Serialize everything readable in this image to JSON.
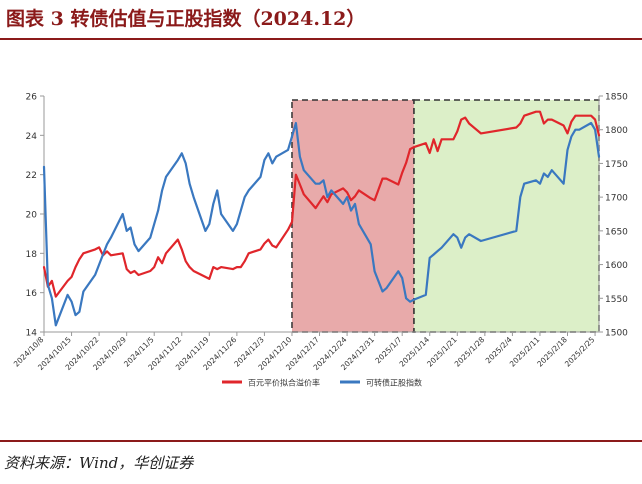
{
  "header": {
    "title": "图表 3    转债估值与正股指数（2024.12）"
  },
  "footer": {
    "source": "资料来源：Wind，华创证券"
  },
  "colors": {
    "title": "#8b1a1a",
    "premium_line": "#e0262b",
    "index_line": "#3a78c0",
    "shade_red": "#e8aaaa",
    "shade_green": "#dcefc8"
  },
  "chart_data": {
    "type": "line",
    "grid": false,
    "legend_position": "bottom",
    "y_left": {
      "ylim": [
        14,
        26
      ],
      "ticks": [
        14,
        16,
        18,
        20,
        22,
        24,
        26
      ]
    },
    "y_right": {
      "ylim": [
        1500,
        1850
      ],
      "ticks": [
        1500,
        1550,
        1600,
        1650,
        1700,
        1750,
        1800,
        1850
      ]
    },
    "x_ticks": [
      "2024/10/8",
      "2024/10/15",
      "2024/10/22",
      "2024/10/29",
      "2024/11/5",
      "2024/11/12",
      "2024/11/19",
      "2024/11/26",
      "2024/12/3",
      "2024/12/10",
      "2024/12/17",
      "2024/12/24",
      "2024/12/31",
      "2025/1/7",
      "2025/1/14",
      "2025/1/21",
      "2025/1/28",
      "2025/2/4",
      "2025/2/11",
      "2025/2/18",
      "2025/2/25"
    ],
    "shaded_regions": [
      {
        "from": "2024/12/10",
        "to": "2025/1/10",
        "color": "red"
      },
      {
        "from": "2025/1/10",
        "to": "2025/2/26",
        "color": "green"
      }
    ],
    "series": [
      {
        "name": "百元平价拟合溢价率",
        "axis": "left",
        "color": "#e0262b",
        "points": [
          [
            "2024/10/8",
            17.3
          ],
          [
            "2024/10/9",
            16.3
          ],
          [
            "2024/10/10",
            16.6
          ],
          [
            "2024/10/11",
            15.8
          ],
          [
            "2024/10/14",
            16.6
          ],
          [
            "2024/10/15",
            16.8
          ],
          [
            "2024/10/16",
            17.3
          ],
          [
            "2024/10/17",
            17.7
          ],
          [
            "2024/10/18",
            18.0
          ],
          [
            "2024/10/21",
            18.2
          ],
          [
            "2024/10/22",
            18.3
          ],
          [
            "2024/10/23",
            17.9
          ],
          [
            "2024/10/24",
            18.1
          ],
          [
            "2024/10/25",
            17.9
          ],
          [
            "2024/10/28",
            18.0
          ],
          [
            "2024/10/29",
            17.2
          ],
          [
            "2024/10/30",
            17.0
          ],
          [
            "2024/10/31",
            17.1
          ],
          [
            "2024/11/1",
            16.9
          ],
          [
            "2024/11/4",
            17.1
          ],
          [
            "2024/11/5",
            17.3
          ],
          [
            "2024/11/6",
            17.8
          ],
          [
            "2024/11/7",
            17.5
          ],
          [
            "2024/11/8",
            18.0
          ],
          [
            "2024/11/11",
            18.7
          ],
          [
            "2024/11/12",
            18.2
          ],
          [
            "2024/11/13",
            17.6
          ],
          [
            "2024/11/14",
            17.3
          ],
          [
            "2024/11/15",
            17.1
          ],
          [
            "2024/11/18",
            16.8
          ],
          [
            "2024/11/19",
            16.7
          ],
          [
            "2024/11/20",
            17.3
          ],
          [
            "2024/11/21",
            17.2
          ],
          [
            "2024/11/22",
            17.3
          ],
          [
            "2024/11/25",
            17.2
          ],
          [
            "2024/11/26",
            17.3
          ],
          [
            "2024/11/27",
            17.3
          ],
          [
            "2024/11/28",
            17.6
          ],
          [
            "2024/11/29",
            18.0
          ],
          [
            "2024/12/2",
            18.2
          ],
          [
            "2024/12/3",
            18.5
          ],
          [
            "2024/12/4",
            18.7
          ],
          [
            "2024/12/5",
            18.4
          ],
          [
            "2024/12/6",
            18.3
          ],
          [
            "2024/12/9",
            19.2
          ],
          [
            "2024/12/10",
            19.6
          ],
          [
            "2024/12/11",
            22.0
          ],
          [
            "2024/12/12",
            21.5
          ],
          [
            "2024/12/13",
            21.0
          ],
          [
            "2024/12/16",
            20.3
          ],
          [
            "2024/12/17",
            20.6
          ],
          [
            "2024/12/18",
            20.9
          ],
          [
            "2024/12/19",
            20.6
          ],
          [
            "2024/12/20",
            21.0
          ],
          [
            "2024/12/23",
            21.3
          ],
          [
            "2024/12/24",
            21.1
          ],
          [
            "2024/12/25",
            20.7
          ],
          [
            "2024/12/26",
            20.9
          ],
          [
            "2024/12/27",
            21.2
          ],
          [
            "2024/12/30",
            20.8
          ],
          [
            "2024/12/31",
            20.7
          ],
          [
            "2025/1/2",
            21.8
          ],
          [
            "2025/1/3",
            21.8
          ],
          [
            "2025/1/6",
            21.5
          ],
          [
            "2025/1/7",
            22.1
          ],
          [
            "2025/1/8",
            22.6
          ],
          [
            "2025/1/9",
            23.3
          ],
          [
            "2025/1/10",
            23.4
          ],
          [
            "2025/1/13",
            23.6
          ],
          [
            "2025/1/14",
            23.1
          ],
          [
            "2025/1/15",
            23.8
          ],
          [
            "2025/1/16",
            23.2
          ],
          [
            "2025/1/17",
            23.8
          ],
          [
            "2025/1/20",
            23.8
          ],
          [
            "2025/1/21",
            24.2
          ],
          [
            "2025/1/22",
            24.8
          ],
          [
            "2025/1/23",
            24.9
          ],
          [
            "2025/1/24",
            24.6
          ],
          [
            "2025/1/27",
            24.1
          ],
          [
            "2025/2/5",
            24.4
          ],
          [
            "2025/2/6",
            24.6
          ],
          [
            "2025/2/7",
            25.0
          ],
          [
            "2025/2/10",
            25.2
          ],
          [
            "2025/2/11",
            25.2
          ],
          [
            "2025/2/12",
            24.6
          ],
          [
            "2025/2/13",
            24.8
          ],
          [
            "2025/2/14",
            24.8
          ],
          [
            "2025/2/17",
            24.5
          ],
          [
            "2025/2/18",
            24.1
          ],
          [
            "2025/2/19",
            24.7
          ],
          [
            "2025/2/20",
            25.0
          ],
          [
            "2025/2/21",
            25.0
          ],
          [
            "2025/2/24",
            25.0
          ],
          [
            "2025/2/25",
            24.8
          ],
          [
            "2025/2/26",
            24.0
          ]
        ]
      },
      {
        "name": "可转债正股指数",
        "axis": "right",
        "color": "#3a78c0",
        "points": [
          [
            "2024/10/8",
            1745
          ],
          [
            "2024/10/9",
            1570
          ],
          [
            "2024/10/10",
            1550
          ],
          [
            "2024/10/11",
            1510
          ],
          [
            "2024/10/14",
            1555
          ],
          [
            "2024/10/15",
            1545
          ],
          [
            "2024/10/16",
            1525
          ],
          [
            "2024/10/17",
            1530
          ],
          [
            "2024/10/18",
            1560
          ],
          [
            "2024/10/21",
            1585
          ],
          [
            "2024/10/22",
            1600
          ],
          [
            "2024/10/23",
            1615
          ],
          [
            "2024/10/24",
            1630
          ],
          [
            "2024/10/25",
            1640
          ],
          [
            "2024/10/28",
            1675
          ],
          [
            "2024/10/29",
            1650
          ],
          [
            "2024/10/30",
            1655
          ],
          [
            "2024/10/31",
            1630
          ],
          [
            "2024/11/1",
            1620
          ],
          [
            "2024/11/4",
            1640
          ],
          [
            "2024/11/5",
            1660
          ],
          [
            "2024/11/6",
            1680
          ],
          [
            "2024/11/7",
            1710
          ],
          [
            "2024/11/8",
            1730
          ],
          [
            "2024/11/11",
            1755
          ],
          [
            "2024/11/12",
            1765
          ],
          [
            "2024/11/13",
            1750
          ],
          [
            "2024/11/14",
            1720
          ],
          [
            "2024/11/15",
            1700
          ],
          [
            "2024/11/18",
            1650
          ],
          [
            "2024/11/19",
            1660
          ],
          [
            "2024/11/20",
            1690
          ],
          [
            "2024/11/21",
            1710
          ],
          [
            "2024/11/22",
            1675
          ],
          [
            "2024/11/25",
            1650
          ],
          [
            "2024/11/26",
            1660
          ],
          [
            "2024/11/27",
            1680
          ],
          [
            "2024/11/28",
            1700
          ],
          [
            "2024/11/29",
            1710
          ],
          [
            "2024/12/2",
            1730
          ],
          [
            "2024/12/3",
            1755
          ],
          [
            "2024/12/4",
            1765
          ],
          [
            "2024/12/5",
            1750
          ],
          [
            "2024/12/6",
            1760
          ],
          [
            "2024/12/9",
            1770
          ],
          [
            "2024/12/10",
            1790
          ],
          [
            "2024/12/11",
            1810
          ],
          [
            "2024/12/12",
            1760
          ],
          [
            "2024/12/13",
            1740
          ],
          [
            "2024/12/16",
            1720
          ],
          [
            "2024/12/17",
            1720
          ],
          [
            "2024/12/18",
            1725
          ],
          [
            "2024/12/19",
            1700
          ],
          [
            "2024/12/20",
            1710
          ],
          [
            "2024/12/23",
            1690
          ],
          [
            "2024/12/24",
            1700
          ],
          [
            "2024/12/25",
            1680
          ],
          [
            "2024/12/26",
            1690
          ],
          [
            "2024/12/27",
            1660
          ],
          [
            "2024/12/30",
            1630
          ],
          [
            "2024/12/31",
            1590
          ],
          [
            "2025/1/2",
            1560
          ],
          [
            "2025/1/3",
            1565
          ],
          [
            "2025/1/6",
            1590
          ],
          [
            "2025/1/7",
            1580
          ],
          [
            "2025/1/8",
            1550
          ],
          [
            "2025/1/9",
            1545
          ],
          [
            "2025/1/10",
            1548
          ],
          [
            "2025/1/13",
            1555
          ],
          [
            "2025/1/14",
            1610
          ],
          [
            "2025/1/15",
            1615
          ],
          [
            "2025/1/16",
            1620
          ],
          [
            "2025/1/17",
            1625
          ],
          [
            "2025/1/20",
            1645
          ],
          [
            "2025/1/21",
            1640
          ],
          [
            "2025/1/22",
            1625
          ],
          [
            "2025/1/23",
            1640
          ],
          [
            "2025/1/24",
            1645
          ],
          [
            "2025/1/27",
            1635
          ],
          [
            "2025/2/5",
            1650
          ],
          [
            "2025/2/6",
            1700
          ],
          [
            "2025/2/7",
            1720
          ],
          [
            "2025/2/10",
            1725
          ],
          [
            "2025/2/11",
            1720
          ],
          [
            "2025/2/12",
            1735
          ],
          [
            "2025/2/13",
            1730
          ],
          [
            "2025/2/14",
            1740
          ],
          [
            "2025/2/17",
            1720
          ],
          [
            "2025/2/18",
            1770
          ],
          [
            "2025/2/19",
            1790
          ],
          [
            "2025/2/20",
            1800
          ],
          [
            "2025/2/21",
            1800
          ],
          [
            "2025/2/24",
            1810
          ],
          [
            "2025/2/25",
            1800
          ],
          [
            "2025/2/26",
            1760
          ]
        ]
      }
    ]
  }
}
